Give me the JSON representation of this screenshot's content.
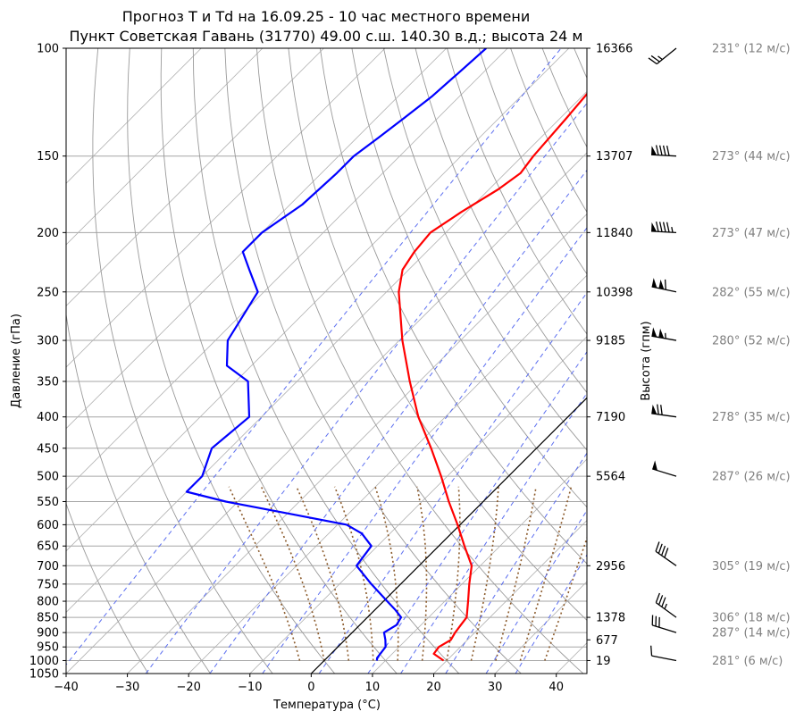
{
  "chart_data": {
    "type": "line",
    "title": "Прогноз T и Td на 16.09.25 - 10 час местного времени",
    "subtitle": "Пункт Советская Гавань (31770) 49.00 с.ш. 140.30 в.д.; высота 24 м",
    "xlabel": "Температура (°C)",
    "ylabel": "Давление (гПа)",
    "ylabel_right": "Высота (гпм)",
    "xlim": [
      -40,
      45
    ],
    "ylim": [
      1050,
      100
    ],
    "y_scale": "log",
    "x_ticks": [
      "−40",
      "−30",
      "−20",
      "−10",
      "0",
      "10",
      "20",
      "30",
      "40"
    ],
    "y_ticks": [
      100,
      150,
      200,
      250,
      300,
      350,
      400,
      450,
      500,
      550,
      600,
      650,
      700,
      750,
      800,
      850,
      900,
      950,
      1000,
      1050
    ],
    "height_ticks": [
      {
        "p": 100,
        "h": "16366"
      },
      {
        "p": 150,
        "h": "13707"
      },
      {
        "p": 200,
        "h": "11840"
      },
      {
        "p": 250,
        "h": "10398"
      },
      {
        "p": 300,
        "h": "9185"
      },
      {
        "p": 400,
        "h": "7190"
      },
      {
        "p": 500,
        "h": "5564"
      },
      {
        "p": 700,
        "h": "2956"
      },
      {
        "p": 850,
        "h": "1378"
      },
      {
        "p": 925,
        "h": "677"
      },
      {
        "p": 1000,
        "h": "19"
      }
    ],
    "grid": true,
    "skew": true,
    "series": [
      {
        "key": "temperature",
        "color": "#ff0000",
        "points": [
          [
            1000,
            19.5
          ],
          [
            975,
            16.8
          ],
          [
            950,
            16.5
          ],
          [
            925,
            17.3
          ],
          [
            900,
            16.8
          ],
          [
            875,
            16.5
          ],
          [
            850,
            16.2
          ],
          [
            800,
            13.8
          ],
          [
            750,
            11.2
          ],
          [
            700,
            8.6
          ],
          [
            650,
            4.2
          ],
          [
            600,
            -0.4
          ],
          [
            550,
            -5.6
          ],
          [
            500,
            -11.0
          ],
          [
            450,
            -17.2
          ],
          [
            400,
            -24.4
          ],
          [
            350,
            -31.6
          ],
          [
            300,
            -39.5
          ],
          [
            250,
            -48.0
          ],
          [
            230,
            -51.0
          ],
          [
            215,
            -52.0
          ],
          [
            200,
            -52.5
          ],
          [
            185,
            -50.8
          ],
          [
            170,
            -48.5
          ],
          [
            160,
            -47.5
          ],
          [
            150,
            -48.2
          ],
          [
            130,
            -49.0
          ],
          [
            115,
            -49.8
          ],
          [
            108,
            -50.0
          ]
        ]
      },
      {
        "key": "dewpoint",
        "color": "#0000ff",
        "points": [
          [
            1000,
            8.6
          ],
          [
            990,
            8.2
          ],
          [
            950,
            7.8
          ],
          [
            925,
            6.6
          ],
          [
            900,
            5.2
          ],
          [
            875,
            6.0
          ],
          [
            850,
            5.5
          ],
          [
            825,
            3.2
          ],
          [
            800,
            0.6
          ],
          [
            750,
            -4.8
          ],
          [
            700,
            -10.2
          ],
          [
            650,
            -11.0
          ],
          [
            620,
            -14.6
          ],
          [
            600,
            -18.5
          ],
          [
            575,
            -30.0
          ],
          [
            550,
            -42.0
          ],
          [
            530,
            -50.0
          ],
          [
            500,
            -50.0
          ],
          [
            450,
            -53.0
          ],
          [
            400,
            -52.0
          ],
          [
            350,
            -58.0
          ],
          [
            330,
            -64.0
          ],
          [
            300,
            -68.0
          ],
          [
            250,
            -71.0
          ],
          [
            230,
            -76.0
          ],
          [
            215,
            -80.0
          ],
          [
            200,
            -80.0
          ],
          [
            180,
            -78.0
          ],
          [
            160,
            -77.5
          ],
          [
            150,
            -77.5
          ],
          [
            140,
            -76.5
          ],
          [
            130,
            -75.5
          ],
          [
            120,
            -74.5
          ],
          [
            110,
            -74.0
          ],
          [
            100,
            -73.5
          ]
        ]
      }
    ],
    "wind": [
      {
        "p": 100,
        "label": "231° (12 м/с)"
      },
      {
        "p": 150,
        "label": "273° (44 м/с)"
      },
      {
        "p": 200,
        "label": "273° (47 м/с)"
      },
      {
        "p": 250,
        "label": "282° (55 м/с)"
      },
      {
        "p": 300,
        "label": "280° (52 м/с)"
      },
      {
        "p": 400,
        "label": "278° (35 м/с)"
      },
      {
        "p": 500,
        "label": "287° (26 м/с)"
      },
      {
        "p": 700,
        "label": "305° (19 м/с)"
      },
      {
        "p": 850,
        "label": "306° (18 м/с)"
      },
      {
        "p": 900,
        "label": "287° (14 м/с)"
      },
      {
        "p": 1000,
        "label": "281° (6 м/с)"
      }
    ]
  }
}
